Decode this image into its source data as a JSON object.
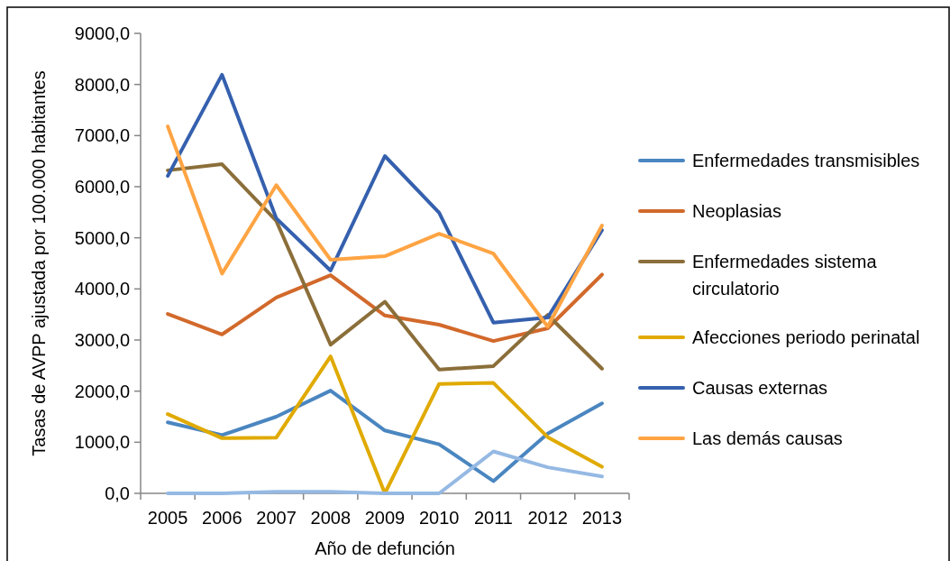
{
  "chart_data": {
    "type": "line",
    "xlabel": "Año de defunción",
    "ylabel": "Tasas de AVPP ajustada por 100.000 habitantes",
    "categories": [
      "2005",
      "2006",
      "2007",
      "2008",
      "2009",
      "2010",
      "2011",
      "2012",
      "2013"
    ],
    "ylim": [
      0,
      9000
    ],
    "yticks": [
      {
        "value": 0,
        "label": "0,0"
      },
      {
        "value": 1000,
        "label": "1000,0"
      },
      {
        "value": 2000,
        "label": "2000,0"
      },
      {
        "value": 3000,
        "label": "3000,0"
      },
      {
        "value": 4000,
        "label": "4000,0"
      },
      {
        "value": 5000,
        "label": "5000,0"
      },
      {
        "value": 6000,
        "label": "6000,0"
      },
      {
        "value": 7000,
        "label": "7000,0"
      },
      {
        "value": 8000,
        "label": "8000,0"
      },
      {
        "value": 9000,
        "label": "9000,0"
      }
    ],
    "grid": false,
    "legend": "right",
    "marker": "none",
    "line_style": "solid",
    "series": [
      {
        "name": "Enfermedades transmisibles",
        "color": "#4a86c0",
        "values": [
          1390,
          1140,
          1500,
          2010,
          1230,
          960,
          240,
          1170,
          1760
        ]
      },
      {
        "name": "Neoplasias",
        "color": "#d2692b",
        "values": [
          3510,
          3110,
          3830,
          4270,
          3480,
          3300,
          2980,
          3230,
          4280
        ]
      },
      {
        "name": "Enfermedades sistema circulatorio",
        "color": "#8b6e39",
        "values": [
          6320,
          6440,
          5330,
          2910,
          3750,
          2420,
          2490,
          3490,
          2440
        ]
      },
      {
        "name": "Afecciones periodo perinatal",
        "color": "#e0aa00",
        "values": [
          1550,
          1080,
          1090,
          2680,
          0,
          2140,
          2160,
          1100,
          520
        ]
      },
      {
        "name": "Causas externas",
        "color": "#3560ae",
        "values": [
          6210,
          8190,
          5380,
          4360,
          6600,
          5490,
          3340,
          3440,
          5150
        ]
      },
      {
        "name": "Las demás causas",
        "color": "#ffa443",
        "values": [
          7180,
          4300,
          6030,
          4570,
          4640,
          5080,
          4690,
          3260,
          5240
        ]
      },
      {
        "color": "#95b9e3",
        "values": [
          0,
          0,
          30,
          30,
          0,
          0,
          820,
          510,
          330
        ]
      }
    ]
  }
}
